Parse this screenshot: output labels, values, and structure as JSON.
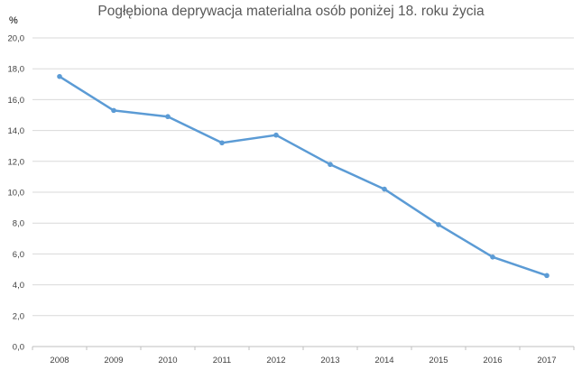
{
  "chart_data": {
    "type": "line",
    "title": "Pogłębiona deprywacja materialna osób poniżej 18. roku życia",
    "ylabel": "%",
    "xlabel": "",
    "categories": [
      "2008",
      "2009",
      "2010",
      "2011",
      "2012",
      "2013",
      "2014",
      "2015",
      "2016",
      "2017"
    ],
    "series": [
      {
        "values": [
          17.5,
          15.3,
          14.9,
          13.2,
          13.7,
          11.8,
          10.2,
          7.9,
          5.8,
          4.6
        ],
        "color": "#5B9BD5"
      }
    ],
    "ylim": [
      0,
      20
    ],
    "yticks": [
      "0,0",
      "2,0",
      "4,0",
      "6,0",
      "8,0",
      "10,0",
      "12,0",
      "14,0",
      "16,0",
      "18,0",
      "20,0"
    ],
    "grid": true,
    "legend": "none"
  }
}
